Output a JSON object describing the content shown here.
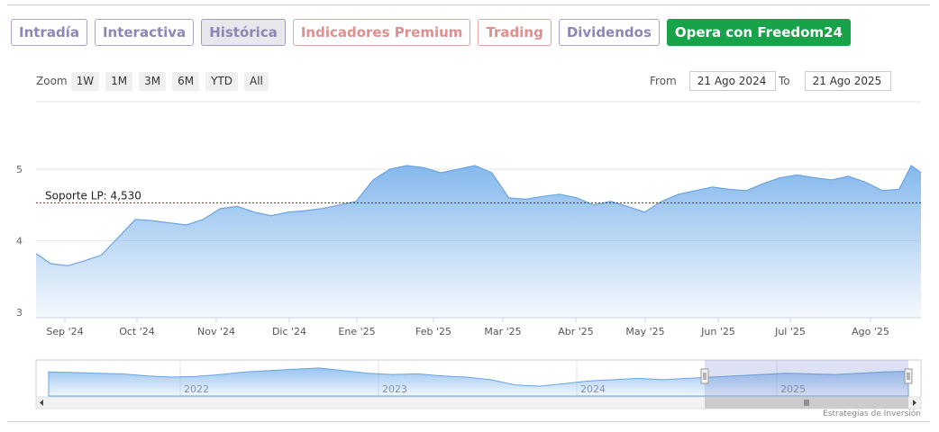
{
  "tabs": [
    {
      "label": "Intradía",
      "style": "normal"
    },
    {
      "label": "Interactiva",
      "style": "normal"
    },
    {
      "label": "Histórica",
      "style": "active"
    },
    {
      "label": "Indicadores Premium",
      "style": "premium"
    },
    {
      "label": "Trading",
      "style": "premium"
    },
    {
      "label": "Dividendos",
      "style": "normal"
    },
    {
      "label": "Opera con Freedom24",
      "style": "cta"
    }
  ],
  "zoom": {
    "label": "Zoom",
    "options": [
      "1W",
      "1M",
      "3M",
      "6M",
      "YTD",
      "All"
    ]
  },
  "range": {
    "from_label": "From",
    "from_value": "21 Ago 2024",
    "to_label": "To",
    "to_value": "21 Ago 2025"
  },
  "credit": "Estrategias de Inversión",
  "colors": {
    "area_fill": "#7fb5ec",
    "area_line": "#6aa4e2",
    "support_line": "#8b1a1a",
    "cta": "#18a34a"
  },
  "chart_data": {
    "type": "area",
    "title": "",
    "xlabel": "",
    "ylabel": "",
    "ylim": [
      3,
      5
    ],
    "y_ticks": [
      3,
      4,
      5
    ],
    "x_ticks": [
      "Sep '24",
      "Oct '24",
      "Nov '24",
      "Dic '24",
      "Ene '25",
      "Feb '25",
      "Mar '25",
      "Abr '25",
      "May '25",
      "Jun '25",
      "Jul '25",
      "Ago '25"
    ],
    "grid": true,
    "legend": "none",
    "annotations": [
      {
        "label": "Soporte LP: 4,530",
        "value": 4.53
      }
    ],
    "series": [
      {
        "x": [
          "2024-08-21",
          "2024-08-27",
          "2024-09-03",
          "2024-09-10",
          "2024-09-17",
          "2024-09-24",
          "2024-10-01",
          "2024-10-08",
          "2024-10-15",
          "2024-10-22",
          "2024-10-29",
          "2024-11-05",
          "2024-11-12",
          "2024-11-19",
          "2024-11-26",
          "2024-12-03",
          "2024-12-10",
          "2024-12-17",
          "2024-12-24",
          "2024-12-31",
          "2025-01-07",
          "2025-01-14",
          "2025-01-21",
          "2025-01-28",
          "2025-02-04",
          "2025-02-11",
          "2025-02-18",
          "2025-02-25",
          "2025-03-04",
          "2025-03-11",
          "2025-03-18",
          "2025-03-25",
          "2025-04-01",
          "2025-04-08",
          "2025-04-15",
          "2025-04-22",
          "2025-04-29",
          "2025-05-06",
          "2025-05-13",
          "2025-05-20",
          "2025-05-27",
          "2025-06-03",
          "2025-06-10",
          "2025-06-17",
          "2025-06-24",
          "2025-07-01",
          "2025-07-08",
          "2025-07-15",
          "2025-07-22",
          "2025-07-29",
          "2025-08-05",
          "2025-08-12",
          "2025-08-17",
          "2025-08-21"
        ],
        "values": [
          3.82,
          3.68,
          3.65,
          3.72,
          3.8,
          4.05,
          4.3,
          4.28,
          4.25,
          4.22,
          4.3,
          4.45,
          4.48,
          4.4,
          4.35,
          4.4,
          4.42,
          4.45,
          4.5,
          4.55,
          4.85,
          5.0,
          5.05,
          5.02,
          4.95,
          5.0,
          5.05,
          4.95,
          4.6,
          4.58,
          4.62,
          4.65,
          4.6,
          4.5,
          4.55,
          4.48,
          4.4,
          4.55,
          4.65,
          4.7,
          4.75,
          4.72,
          4.7,
          4.8,
          4.88,
          4.92,
          4.88,
          4.85,
          4.9,
          4.82,
          4.7,
          4.72,
          5.05,
          4.95
        ]
      }
    ],
    "navigator": {
      "x_ticks": [
        "2022",
        "2023",
        "2024",
        "2025"
      ],
      "values": [
        4.9,
        4.85,
        4.8,
        4.75,
        4.6,
        4.5,
        4.55,
        4.7,
        4.9,
        5.0,
        5.1,
        5.2,
        5.0,
        4.8,
        4.7,
        4.75,
        4.6,
        4.5,
        4.3,
        3.9,
        3.8,
        4.0,
        4.2,
        4.3,
        4.4,
        4.3,
        4.4,
        4.5,
        4.6,
        4.7,
        4.8,
        4.75,
        4.7,
        4.8,
        4.9,
        4.95
      ],
      "selected_range": [
        "2024-08-21",
        "2025-08-21"
      ]
    }
  }
}
